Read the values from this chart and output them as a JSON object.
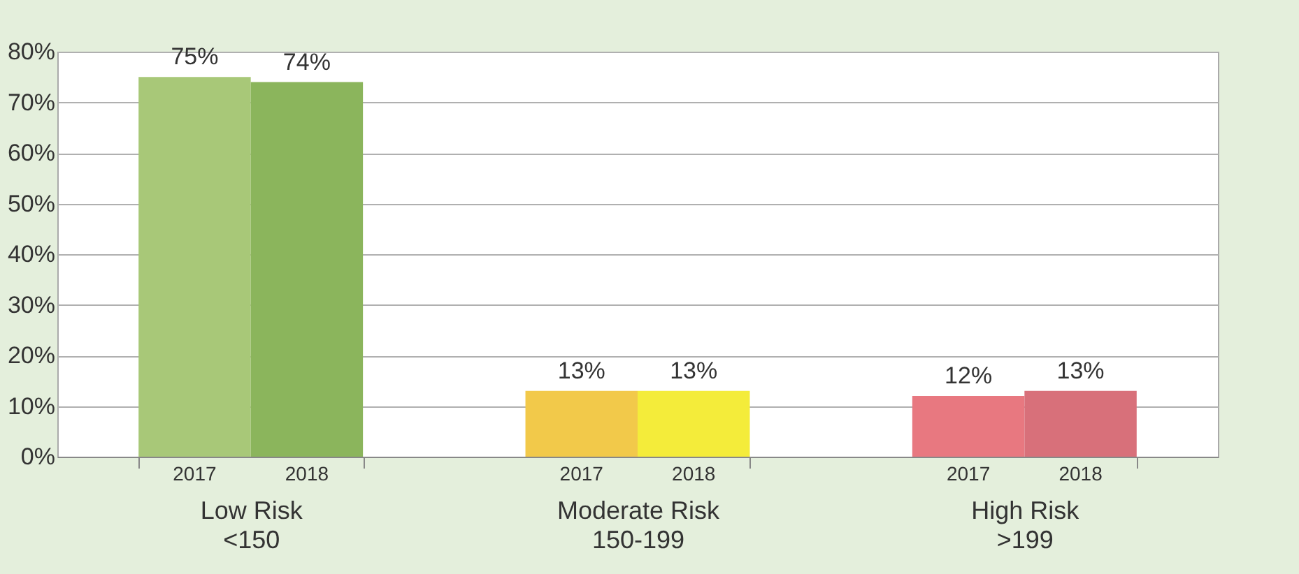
{
  "chart_data": {
    "type": "bar",
    "categories": [
      "Low Risk\n<150",
      "Moderate Risk\n150-199",
      "High Risk\n>199"
    ],
    "series": [
      {
        "name": "2017",
        "colors": [
          "#a8c878",
          "#f2c94a",
          "#e87880"
        ],
        "values": [
          75,
          13,
          12
        ],
        "value_labels": [
          "75%",
          "13%",
          "12%"
        ]
      },
      {
        "name": "2018",
        "colors": [
          "#8bb55c",
          "#f4ec3a",
          "#d8707a"
        ],
        "values": [
          74,
          13,
          13
        ],
        "value_labels": [
          "74%",
          "13%",
          "13%"
        ]
      }
    ],
    "ylim": [
      0,
      80
    ],
    "yticks": [
      {
        "value": 0,
        "label": "0%"
      },
      {
        "value": 10,
        "label": "10%"
      },
      {
        "value": 20,
        "label": "20%"
      },
      {
        "value": 30,
        "label": "30%"
      },
      {
        "value": 40,
        "label": "40%"
      },
      {
        "value": 50,
        "label": "50%"
      },
      {
        "value": 60,
        "label": "60%"
      },
      {
        "value": 70,
        "label": "70%"
      },
      {
        "value": 80,
        "label": "80%"
      }
    ],
    "grid": "y"
  }
}
